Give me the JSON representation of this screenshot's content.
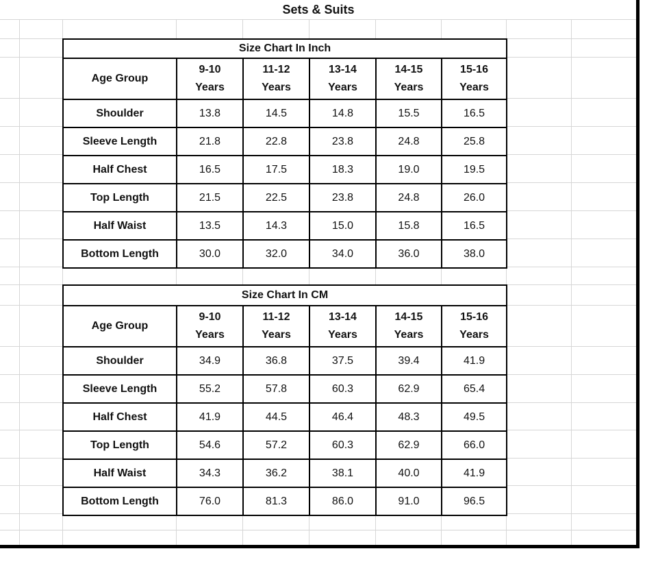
{
  "sheet_title": "Sets & Suits",
  "tables": [
    {
      "title": "Size Chart In Inch",
      "corner_label": "Age Group",
      "col_headers": [
        "9-10\nYears",
        "11-12\nYears",
        "13-14\nYears",
        "14-15\nYears",
        "15-16\nYears"
      ],
      "rows": [
        {
          "label": "Shoulder",
          "values": [
            "13.8",
            "14.5",
            "14.8",
            "15.5",
            "16.5"
          ]
        },
        {
          "label": "Sleeve Length",
          "values": [
            "21.8",
            "22.8",
            "23.8",
            "24.8",
            "25.8"
          ]
        },
        {
          "label": "Half Chest",
          "values": [
            "16.5",
            "17.5",
            "18.3",
            "19.0",
            "19.5"
          ]
        },
        {
          "label": "Top Length",
          "values": [
            "21.5",
            "22.5",
            "23.8",
            "24.8",
            "26.0"
          ]
        },
        {
          "label": "Half Waist",
          "values": [
            "13.5",
            "14.3",
            "15.0",
            "15.8",
            "16.5"
          ]
        },
        {
          "label": "Bottom Length",
          "values": [
            "30.0",
            "32.0",
            "34.0",
            "36.0",
            "38.0"
          ]
        }
      ]
    },
    {
      "title": "Size Chart In CM",
      "corner_label": "Age Group",
      "col_headers": [
        "9-10\nYears",
        "11-12\nYears",
        "13-14\nYears",
        "14-15\nYears",
        "15-16\nYears"
      ],
      "rows": [
        {
          "label": "Shoulder",
          "values": [
            "34.9",
            "36.8",
            "37.5",
            "39.4",
            "41.9"
          ]
        },
        {
          "label": "Sleeve Length",
          "values": [
            "55.2",
            "57.8",
            "60.3",
            "62.9",
            "65.4"
          ]
        },
        {
          "label": "Half Chest",
          "values": [
            "41.9",
            "44.5",
            "46.4",
            "48.3",
            "49.5"
          ]
        },
        {
          "label": "Top Length",
          "values": [
            "54.6",
            "57.2",
            "60.3",
            "62.9",
            "66.0"
          ]
        },
        {
          "label": "Half Waist",
          "values": [
            "34.3",
            "36.2",
            "38.1",
            "40.0",
            "41.9"
          ]
        },
        {
          "label": "Bottom Length",
          "values": [
            "76.0",
            "81.3",
            "86.0",
            "91.0",
            "96.5"
          ]
        }
      ]
    }
  ]
}
